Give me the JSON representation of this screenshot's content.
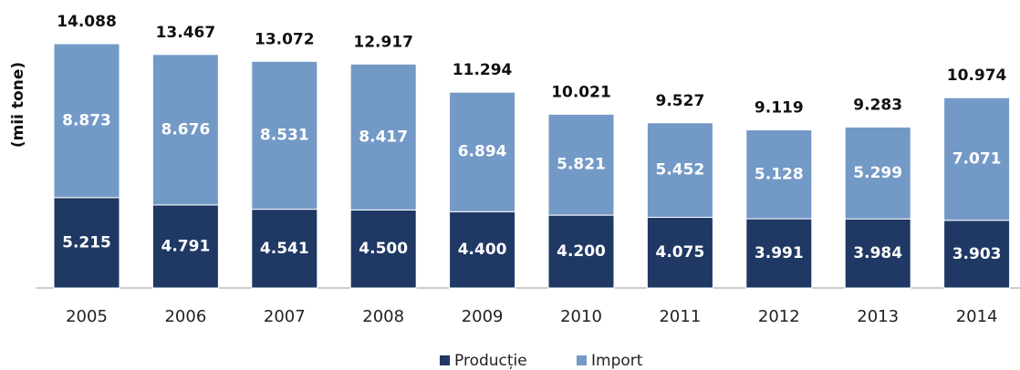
{
  "chart_data": {
    "type": "stacked-bar",
    "y_label": "(mii tone)",
    "categories": [
      "2005",
      "2006",
      "2007",
      "2008",
      "2009",
      "2010",
      "2011",
      "2012",
      "2013",
      "2014"
    ],
    "series": [
      {
        "name": "Producție",
        "color": "#1f3864",
        "values": [
          5215,
          4791,
          4541,
          4500,
          4400,
          4200,
          4075,
          3991,
          3984,
          3903
        ],
        "value_labels": [
          "5.215",
          "4.791",
          "4.541",
          "4.500",
          "4.400",
          "4.200",
          "4.075",
          "3.991",
          "3.984",
          "3.903"
        ]
      },
      {
        "name": "Import",
        "color": "#7399c6",
        "values": [
          8873,
          8676,
          8531,
          8417,
          6894,
          5821,
          5452,
          5128,
          5299,
          7071
        ],
        "value_labels": [
          "8.873",
          "8.676",
          "8.531",
          "8.417",
          "6.894",
          "5.821",
          "5.452",
          "5.128",
          "5.299",
          "7.071"
        ]
      }
    ],
    "totals": {
      "values": [
        14088,
        13467,
        13072,
        12917,
        11294,
        10021,
        9527,
        9119,
        9283,
        10974
      ],
      "value_labels": [
        "14.088",
        "13.467",
        "13.072",
        "12.917",
        "11.294",
        "10.021",
        "9.527",
        "9.119",
        "9.283",
        "10.974"
      ]
    },
    "legend": "bottom"
  }
}
